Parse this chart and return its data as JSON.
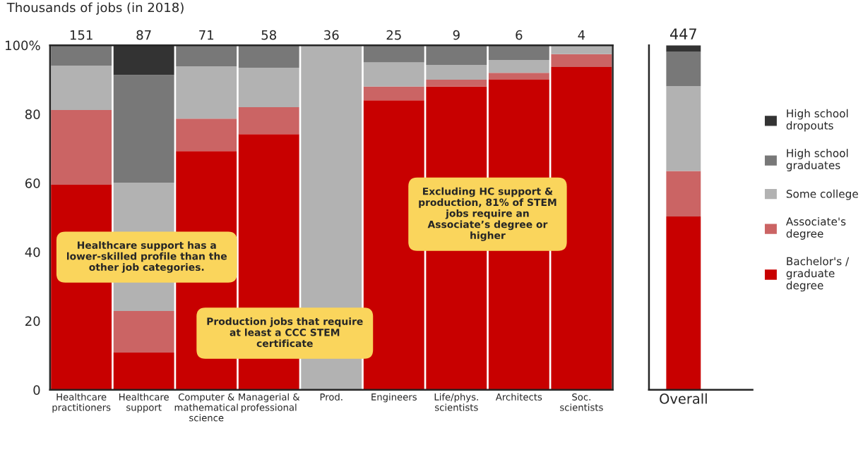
{
  "chart_data": [
    {
      "type": "bar",
      "stacked": true,
      "title": "Thousands of jobs (in 2018)",
      "categories": [
        "Healthcare\npractitioners",
        "Healthcare\nsupport",
        "Computer &\nmathematical\nscience",
        "Managerial &\nprofessional",
        "Prod.",
        "Engineers",
        "Life/phys. scientists",
        "Architects",
        "Soc. scientists"
      ],
      "series": [
        {
          "color": "#c80000",
          "values": [
            59.5,
            10.8,
            69.3,
            74.2,
            0,
            84,
            88,
            90,
            93.7
          ]
        },
        {
          "color": "#cb6464",
          "values": [
            21.7,
            12.1,
            9.4,
            7.8,
            0,
            4,
            2,
            2,
            3.7
          ]
        },
        {
          "color": "#b2b2b2",
          "values": [
            12.9,
            37.2,
            15.2,
            11.5,
            100,
            7,
            4.3,
            3.7,
            2.6
          ]
        },
        {
          "color": "#787878",
          "values": [
            5.9,
            31.3,
            6.1,
            6.5,
            0,
            5,
            5.7,
            4.3,
            0
          ]
        },
        {
          "color": "#333333",
          "values": [
            0,
            8.6,
            0,
            0,
            0,
            0,
            0,
            0,
            0
          ]
        }
      ],
      "ylim": [
        0,
        100
      ],
      "yticks": [
        0,
        20,
        40,
        60,
        {
          "value": 80,
          "label": "80"
        },
        {
          "value": 100,
          "label": "100%"
        }
      ],
      "grid": false,
      "annotations": [
        "Healthcare support has a lower-skilled profile than the other job categories.",
        "Production jobs that require at least a CCC STEM certificate",
        "Excluding HC support & production, 81% of STEM jobs require an Associate’s degree or higher",
        {
          "text": "151",
          "x": "Healthcare\npractitioners",
          "y": 100
        },
        {
          "text": "87",
          "x": "Healthcare\nsupport",
          "y": 100
        },
        {
          "text": "71",
          "x": "Computer &\nmathematical\nscience",
          "y": 100
        },
        {
          "text": "58",
          "x": "Managerial &\nprofessional",
          "y": 100
        },
        {
          "text": "36",
          "x": "Prod.",
          "y": 100
        },
        {
          "text": "25",
          "x": "Engineers",
          "y": 100
        },
        {
          "text": "9",
          "x": "Life/phys. scientists",
          "y": 100
        },
        {
          "text": "6",
          "x": "Architects",
          "y": 100
        },
        {
          "text": "4",
          "x": "Soc. scientists",
          "y": 100
        }
      ]
    },
    {
      "type": "bar",
      "stacked": true,
      "categories": [
        "Overall"
      ],
      "series": [
        {
          "name": "Bachelor's / graduate degree",
          "color": "#c80000",
          "values": [
            50.3
          ]
        },
        {
          "name": "Associate's degree",
          "color": "#cb6464",
          "values": [
            13.2
          ]
        },
        {
          "name": "Some college",
          "color": "#b2b2b2",
          "values": [
            24.6
          ]
        },
        {
          "name": "High school graduates",
          "color": "#787878",
          "values": [
            10.0
          ]
        },
        {
          "name": "High school dropouts",
          "color": "#333333",
          "values": [
            1.9
          ]
        }
      ],
      "annotations": [
        {
          "text": "447",
          "x": "Overall",
          "y": 100
        }
      ],
      "ylim": [
        0,
        100
      ],
      "yticks": [
        0,
        20,
        40,
        60,
        80,
        100
      ],
      "tick_labels": "x",
      "legend": "right",
      "grid": false
    }
  ]
}
